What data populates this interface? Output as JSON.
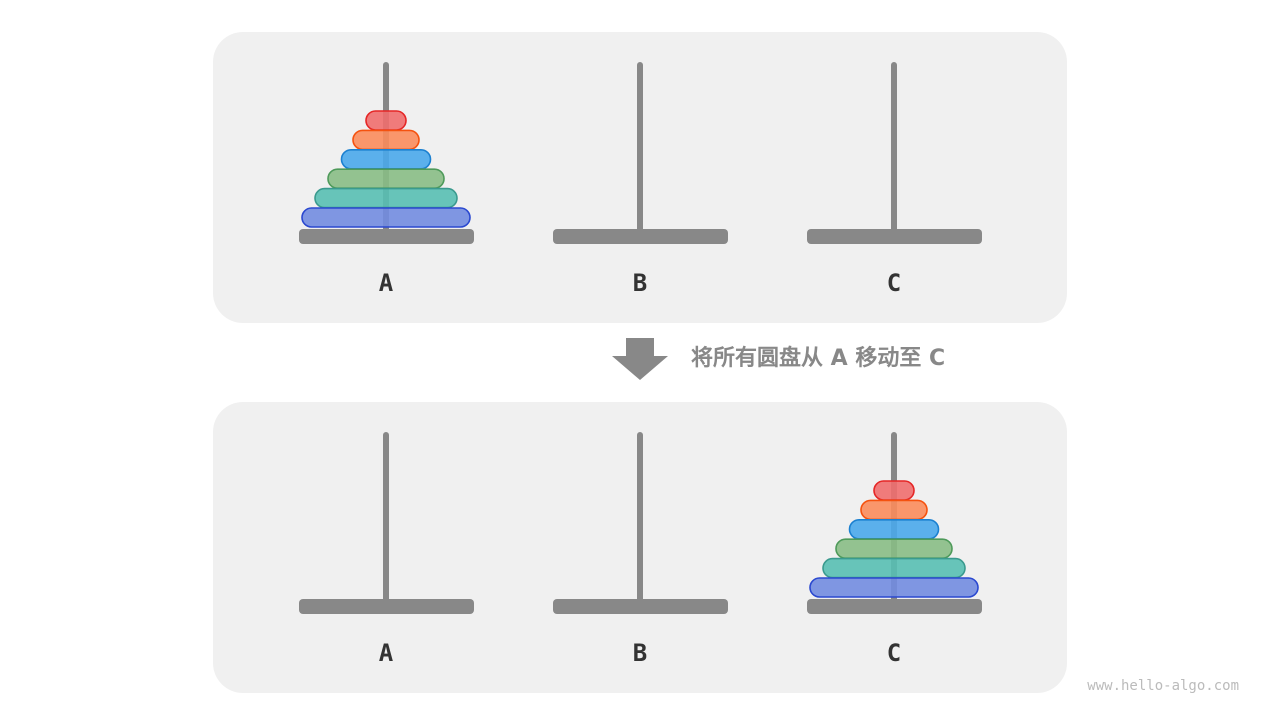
{
  "pegs": [
    "A",
    "B",
    "C"
  ],
  "caption": "将所有圆盘从 A 移动至 C",
  "watermark": "www.hello-algo.com",
  "colors": {
    "panel": "#f0f0f0",
    "rod": "#888888",
    "arrow": "#888888"
  },
  "disks": [
    {
      "fill": "#ef6e6e",
      "stroke": "#e52626"
    },
    {
      "fill": "#fb8c5c",
      "stroke": "#f5520f"
    },
    {
      "fill": "#4aa9eb",
      "stroke": "#1b80d0"
    },
    {
      "fill": "#88bd85",
      "stroke": "#4e9a5a"
    },
    {
      "fill": "#58bfb3",
      "stroke": "#3a9a8e"
    },
    {
      "fill": "#728ce0",
      "stroke": "#2a48d0"
    }
  ],
  "states": [
    {
      "stack_peg": "A"
    },
    {
      "stack_peg": "C"
    }
  ]
}
